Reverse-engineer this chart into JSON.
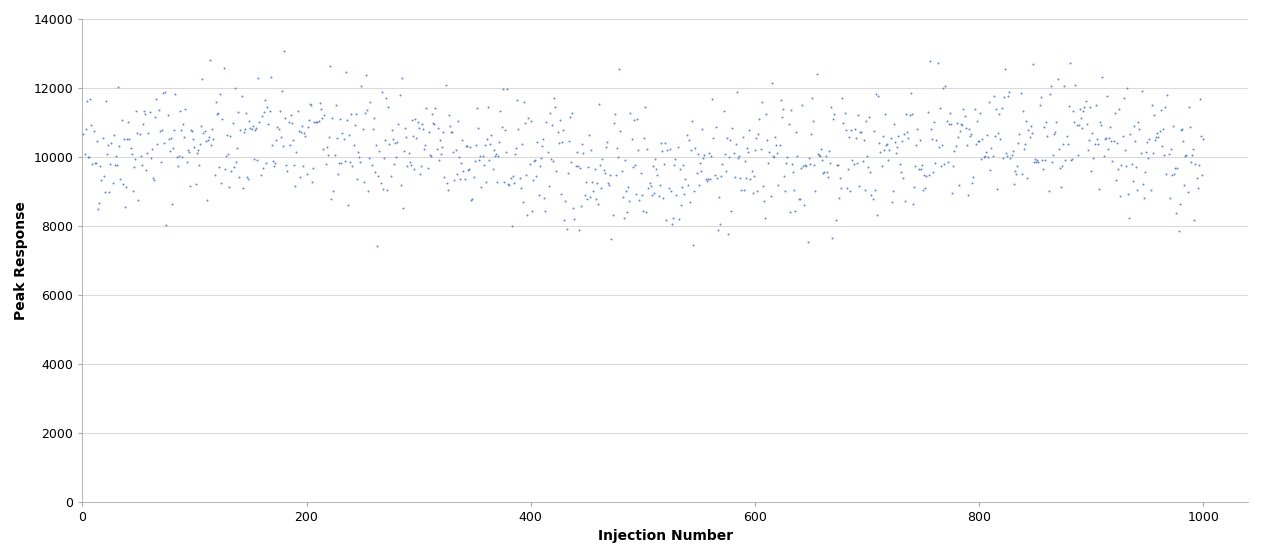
{
  "n_points": 1000,
  "mean": 10200,
  "std": 920,
  "seed": 42,
  "marker_color": "#4472C4",
  "marker_size": 8,
  "marker_style": ".",
  "xlabel": "Injection Number",
  "ylabel": "Peak Response",
  "xlim": [
    0,
    1040
  ],
  "ylim": [
    0,
    14000
  ],
  "yticks": [
    0,
    2000,
    4000,
    6000,
    8000,
    10000,
    12000,
    14000
  ],
  "xticks": [
    0,
    200,
    400,
    600,
    800,
    1000
  ],
  "grid_color": "#d8d8d8",
  "grid_linestyle": "-",
  "grid_linewidth": 0.7,
  "background_color": "#ffffff",
  "tick_labelsize": 9,
  "label_fontsize": 10,
  "label_fontweight": "bold",
  "figsize": [
    12.62,
    5.57
  ],
  "dpi": 100
}
